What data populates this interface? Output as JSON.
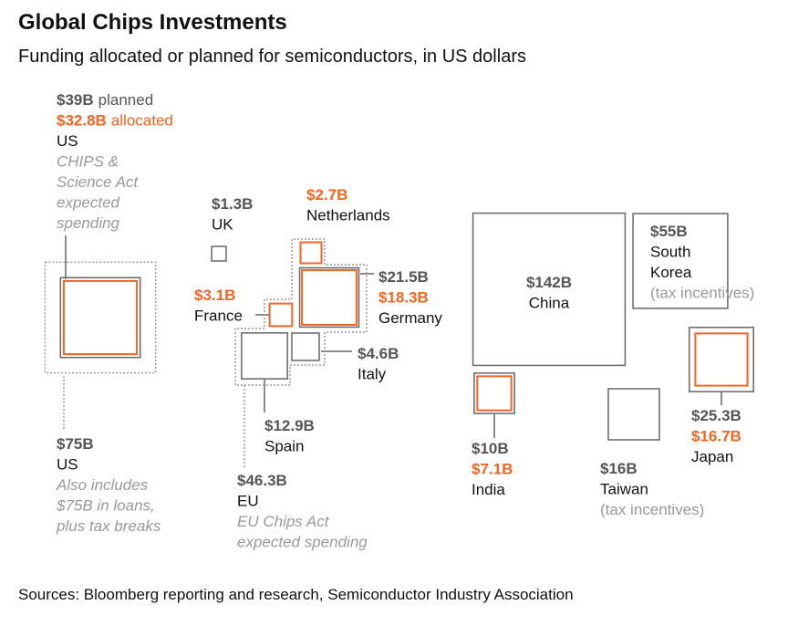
{
  "chart_data": {
    "type": "square-area",
    "title": "Global Chips Investments",
    "subtitle": "Funding allocated or planned for semiconductors, in US dollars",
    "source": "Sources: Bloomberg reporting and research, Semiconductor Industry Association",
    "colors": {
      "planned": "#666666",
      "allocated": "#f26522",
      "total": "#999999"
    },
    "items": [
      {
        "name": "US",
        "planned": 39,
        "planned_label": "$39B",
        "planned_text": "planned",
        "allocated": 32.8,
        "allocated_label": "$32.8B",
        "allocated_text": "allocated",
        "note": [
          "CHIPS &",
          "Science Act",
          "expected",
          "spending"
        ]
      },
      {
        "name": "US",
        "total": 75,
        "total_label": "$75B",
        "note": [
          "Also includes",
          "$75B in loans,",
          "plus tax breaks"
        ]
      },
      {
        "name": "UK",
        "planned": 1.3,
        "planned_label": "$1.3B"
      },
      {
        "name": "Netherlands",
        "allocated": 2.7,
        "allocated_label": "$2.7B"
      },
      {
        "name": "Germany",
        "planned": 21.5,
        "planned_label": "$21.5B",
        "allocated": 18.3,
        "allocated_label": "$18.3B"
      },
      {
        "name": "France",
        "allocated": 3.1,
        "allocated_label": "$3.1B"
      },
      {
        "name": "Italy",
        "planned": 4.6,
        "planned_label": "$4.6B"
      },
      {
        "name": "Spain",
        "planned": 12.9,
        "planned_label": "$12.9B"
      },
      {
        "name": "EU",
        "total": 46.3,
        "total_label": "$46.3B",
        "note": [
          "EU Chips Act",
          "expected spending"
        ]
      },
      {
        "name": "China",
        "planned": 142,
        "planned_label": "$142B"
      },
      {
        "name": [
          "South",
          "Korea"
        ],
        "planned": 55,
        "planned_label": "$55B",
        "plain_note": "(tax incentives)"
      },
      {
        "name": "India",
        "planned": 10,
        "planned_label": "$10B",
        "allocated": 7.1,
        "allocated_label": "$7.1B"
      },
      {
        "name": "Taiwan",
        "planned": 16,
        "planned_label": "$16B",
        "plain_note": "(tax incentives)"
      },
      {
        "name": "Japan",
        "planned": 25.3,
        "planned_label": "$25.3B",
        "allocated": 16.7,
        "allocated_label": "$16.7B"
      }
    ]
  }
}
